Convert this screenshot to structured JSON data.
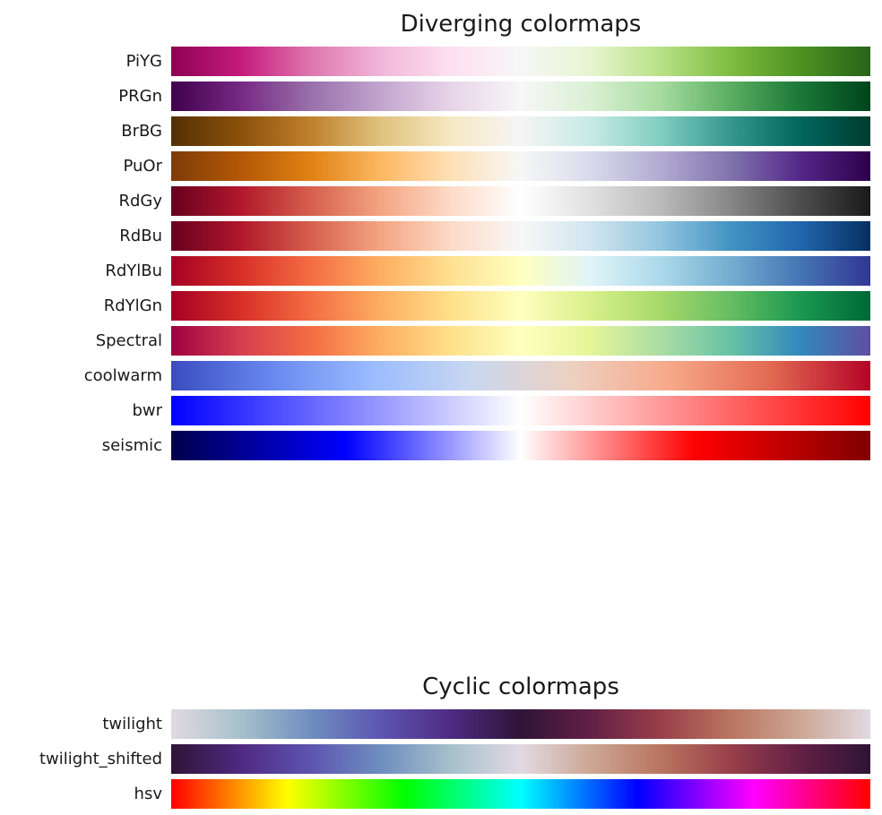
{
  "chart_data": [
    {
      "type": "heatmap",
      "title": "Diverging colormaps",
      "colormaps": [
        {
          "name": "PiYG",
          "colors": [
            "#8e0152",
            "#c51b7d",
            "#de77ae",
            "#f1b6da",
            "#fde0ef",
            "#f7f7f7",
            "#e6f5d0",
            "#b8e186",
            "#7fbc41",
            "#4d9221",
            "#276419"
          ]
        },
        {
          "name": "PRGn",
          "colors": [
            "#40004b",
            "#762a83",
            "#9970ab",
            "#c2a5cf",
            "#e7d4e8",
            "#f7f7f7",
            "#d9f0d3",
            "#a6dba0",
            "#5aae61",
            "#1b7837",
            "#00441b"
          ]
        },
        {
          "name": "BrBG",
          "colors": [
            "#543005",
            "#8c510a",
            "#bf812d",
            "#dfc27d",
            "#f6e8c3",
            "#f5f5f5",
            "#c7eae5",
            "#80cdc1",
            "#35978f",
            "#01665e",
            "#003c30"
          ]
        },
        {
          "name": "PuOr",
          "colors": [
            "#7f3b08",
            "#b35806",
            "#e08214",
            "#fdb863",
            "#fee0b6",
            "#f7f7f7",
            "#d8daeb",
            "#b2abd2",
            "#8073ac",
            "#542788",
            "#2d004b"
          ]
        },
        {
          "name": "RdGy",
          "colors": [
            "#67001f",
            "#b2182b",
            "#d6604d",
            "#f4a582",
            "#fddbc7",
            "#ffffff",
            "#e0e0e0",
            "#bababa",
            "#878787",
            "#4d4d4d",
            "#1a1a1a"
          ]
        },
        {
          "name": "RdBu",
          "colors": [
            "#67001f",
            "#b2182b",
            "#d6604d",
            "#f4a582",
            "#fddbc7",
            "#f7f7f7",
            "#d1e5f0",
            "#92c5de",
            "#4393c3",
            "#2166ac",
            "#053061"
          ]
        },
        {
          "name": "RdYlBu",
          "colors": [
            "#a50026",
            "#d73027",
            "#f46d43",
            "#fdae61",
            "#fee090",
            "#ffffbf",
            "#e0f3f8",
            "#abd9e9",
            "#74add1",
            "#4575b4",
            "#313695"
          ]
        },
        {
          "name": "RdYlGn",
          "colors": [
            "#a50026",
            "#d73027",
            "#f46d43",
            "#fdae61",
            "#fee08b",
            "#ffffbf",
            "#d9ef8b",
            "#a6d96a",
            "#66bd63",
            "#1a9850",
            "#006837"
          ]
        },
        {
          "name": "Spectral",
          "colors": [
            "#9e0142",
            "#d53e4f",
            "#f46d43",
            "#fdae61",
            "#fee08b",
            "#ffffbf",
            "#e6f598",
            "#abdda4",
            "#66c2a5",
            "#3288bd",
            "#5e4fa2"
          ]
        },
        {
          "name": "coolwarm",
          "colors": [
            "#3b4cc0",
            "#6788ee",
            "#9abbff",
            "#c9d7f0",
            "#edd1c2",
            "#f7a889",
            "#e26952",
            "#b40426"
          ]
        },
        {
          "name": "bwr",
          "colors": [
            "#0000ff",
            "#ffffff",
            "#ff0000"
          ]
        },
        {
          "name": "seismic",
          "colors": [
            "#00004c",
            "#0000ff",
            "#ffffff",
            "#ff0000",
            "#800000"
          ]
        }
      ]
    },
    {
      "type": "heatmap",
      "title": "Cyclic colormaps",
      "colormaps": [
        {
          "name": "twilight",
          "colors": [
            "#e2d9e2",
            "#a6c0cb",
            "#6e8ebf",
            "#5d55b0",
            "#4f2a82",
            "#2f1436",
            "#622045",
            "#983f4a",
            "#b97560",
            "#cca794",
            "#e2d9e2"
          ]
        },
        {
          "name": "twilight_shifted",
          "colors": [
            "#2f1436",
            "#4f2a82",
            "#5d55b0",
            "#6e8ebf",
            "#a6c0cb",
            "#e2d9e2",
            "#cca794",
            "#b97560",
            "#983f4a",
            "#622045",
            "#2f1436"
          ]
        },
        {
          "name": "hsv",
          "colors": [
            "#ff0000",
            "#ffff00",
            "#00ff00",
            "#00ffff",
            "#0000ff",
            "#ff00ff",
            "#ff0000"
          ]
        }
      ]
    }
  ]
}
